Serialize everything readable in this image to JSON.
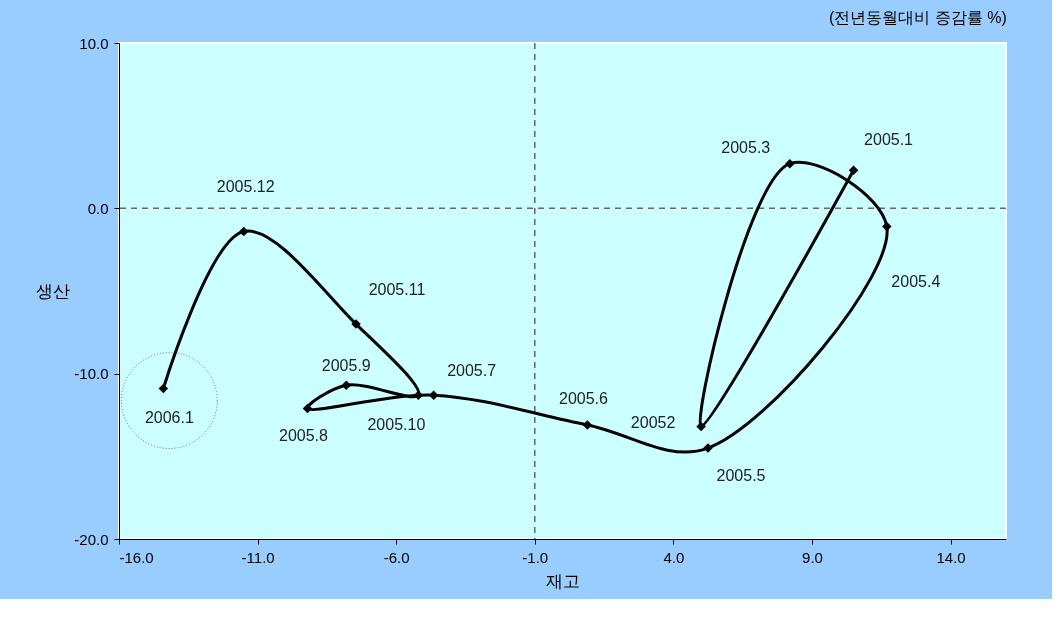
{
  "chart_data": {
    "type": "line",
    "title": "(전년동월대비 증감률 %)",
    "xlabel": "재고",
    "ylabel": "생산",
    "x": [
      10.5,
      5.0,
      8.2,
      11.7,
      5.25,
      0.9,
      -4.65,
      -9.2,
      -7.8,
      -5.2,
      -7.45,
      -11.5,
      -14.4
    ],
    "series": [
      {
        "color": "#000000",
        "values": [
          2.3,
          -13.2,
          2.7,
          -1.1,
          -14.5,
          -13.1,
          -11.3,
          -12.1,
          -10.7,
          -11.3,
          -7.0,
          -1.4,
          -10.9
        ]
      }
    ],
    "xlim": [
      -16,
      16
    ],
    "ylim": [
      -20,
      10
    ],
    "xticks": [
      {
        "value": -16,
        "label": "-16.0"
      },
      {
        "value": -11,
        "label": "-11.0"
      },
      {
        "value": -6,
        "label": "-6.0"
      },
      {
        "value": -1,
        "label": "-1.0"
      },
      {
        "value": 4,
        "label": "4.0"
      },
      {
        "value": 9,
        "label": "9.0"
      },
      {
        "value": 14,
        "label": "14.0"
      }
    ],
    "yticks": [
      {
        "value": -20,
        "label": "-20.0"
      },
      {
        "value": -10,
        "label": "-10.0"
      },
      {
        "value": 0,
        "label": "0.0"
      },
      {
        "value": 10,
        "label": "10.0"
      }
    ],
    "ref_lines": [
      {
        "axis": "y",
        "value": 0,
        "color": "#666666",
        "line_style": "dashed"
      },
      {
        "axis": "x",
        "value": -1,
        "color": "#666666",
        "line_style": "dashed"
      }
    ],
    "annotations": [
      {
        "text": "2005.1",
        "x": 10.5,
        "y": 2.3
      },
      {
        "text": "20052",
        "x": 5.0,
        "y": -13.2
      },
      {
        "text": "2005.3",
        "x": 8.2,
        "y": 2.7
      },
      {
        "text": "2005.4",
        "x": 11.7,
        "y": -1.1
      },
      {
        "text": "2005.5",
        "x": 5.25,
        "y": -14.5
      },
      {
        "text": "2005.6",
        "x": 0.9,
        "y": -13.1
      },
      {
        "text": "2005.7",
        "x": -4.65,
        "y": -11.3
      },
      {
        "text": "2005.8",
        "x": -9.2,
        "y": -12.1
      },
      {
        "text": "2005.9",
        "x": -7.8,
        "y": -10.7
      },
      {
        "text": "2005.10",
        "x": -5.2,
        "y": -11.3
      },
      {
        "text": "2005.11",
        "x": -7.45,
        "y": -7.0
      },
      {
        "text": "2005.12",
        "x": -11.5,
        "y": -1.4
      },
      {
        "text": "2006.1",
        "x": -14.4,
        "y": -10.9
      }
    ],
    "marker": "diamond",
    "line_style": "solid",
    "grid": false
  }
}
